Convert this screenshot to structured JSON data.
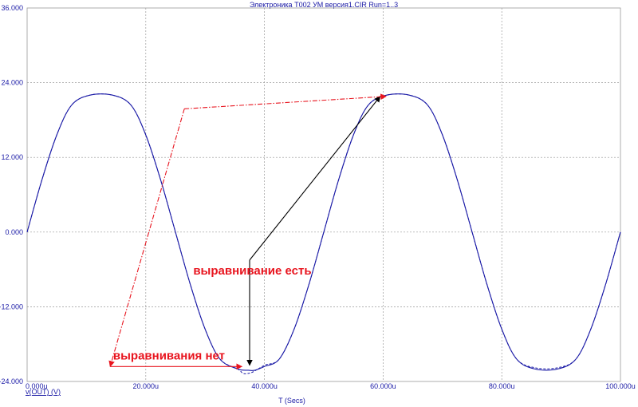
{
  "colors": {
    "axis_text": "#1a1aa6",
    "trace": "#1a1aa6",
    "grid": "#9a9a9a",
    "annotation_red": "#e8141e",
    "annotation_black": "#000000"
  },
  "chart_data": {
    "type": "line",
    "title": "Электроника Т002 УМ версия1.CIR Run=1..3",
    "xlabel": "T (Secs)",
    "ylabel": "",
    "xlim": [
      0,
      100
    ],
    "ylim": [
      -24,
      36
    ],
    "x_unit": "u",
    "grid": true,
    "x_ticks": [
      0,
      20,
      40,
      60,
      80,
      100
    ],
    "x_tick_labels": [
      "0.000u",
      "20.000u",
      "40.000u",
      "60.000u",
      "80.000u",
      "100.000u"
    ],
    "y_ticks": [
      -24,
      -12,
      0,
      12,
      24,
      36
    ],
    "y_tick_labels": [
      "-24.000",
      "-12.000",
      "0.000",
      "12.000",
      "24.000",
      "36.000"
    ],
    "legend": [
      {
        "label": "v(OUT) (V)",
        "position": "bottom-left"
      }
    ],
    "series": [
      {
        "style": "solid",
        "x": [
          0,
          2.5,
          5,
          7.5,
          10.6,
          14.4,
          17.5,
          20,
          22.5,
          25,
          27.5,
          30,
          32.5,
          35.5,
          37.3,
          38.4,
          40,
          42.5,
          45,
          47.5,
          50,
          52.5,
          55,
          57.5,
          60.6,
          64.4,
          67.5,
          70,
          72.5,
          75,
          77.5,
          80,
          82.5,
          85.6,
          89.4,
          92.5,
          95,
          97.5,
          100
        ],
        "y": [
          0,
          8.4,
          15.6,
          20.4,
          22,
          22,
          20.4,
          15.6,
          8.4,
          0,
          -8.4,
          -15.6,
          -20.4,
          -22,
          -22.2,
          -22.2,
          -21.6,
          -20.4,
          -15.6,
          -8.4,
          0,
          8.4,
          15.6,
          20.4,
          22,
          22,
          20.4,
          15.6,
          8.4,
          0,
          -8.4,
          -15.6,
          -20.4,
          -22,
          -22,
          -20.4,
          -15.6,
          -8.4,
          0
        ]
      },
      {
        "style": "dashed",
        "x": [
          0,
          2.5,
          5,
          7.5,
          10.6,
          14.4,
          17.5,
          20,
          22.5,
          25,
          27.5,
          30,
          32.5,
          35.5,
          36.4,
          37.3,
          38.2,
          40,
          42.5,
          45,
          47.5,
          50,
          52.5,
          55,
          57.5,
          60.6,
          64.4,
          67.5,
          70,
          72.5,
          75,
          77.5,
          80,
          82.5,
          85.6,
          89.4,
          92.5,
          95,
          97.5,
          100
        ],
        "y": [
          0,
          8.4,
          15.6,
          20.4,
          22,
          22,
          20.4,
          15.6,
          8.4,
          0,
          -8.4,
          -15.6,
          -20.4,
          -22,
          -22.7,
          -22.7,
          -22.4,
          -21.4,
          -20.4,
          -15.6,
          -8.4,
          0,
          8.4,
          15.6,
          20.4,
          22,
          22,
          20.4,
          15.6,
          8.4,
          0,
          -8.4,
          -15.6,
          -20.4,
          -21.8,
          -21.8,
          -20.4,
          -15.6,
          -8.4,
          0
        ]
      }
    ],
    "annotations": [
      {
        "text": "выравнивание есть",
        "color": "#e8141e",
        "text_at": [
          28,
          -6.8
        ],
        "arrows": [
          {
            "from": [
              37.5,
              -4.5
            ],
            "to": [
              37.5,
              -21.4
            ],
            "color": "#000000",
            "style": "solid"
          },
          {
            "from": [
              37.5,
              -4.5
            ],
            "to": [
              59.5,
              21.8
            ],
            "color": "#000000",
            "style": "solid"
          }
        ]
      },
      {
        "text": "выравнивания нет",
        "color": "#e8141e",
        "text_at": [
          14.5,
          -20.5
        ],
        "arrows": [
          {
            "from": [
              26.5,
              19.8
            ],
            "to": [
              14,
              -21.6
            ],
            "color": "#e8141e",
            "style": "dashdot"
          },
          {
            "from": [
              26.5,
              19.8
            ],
            "to": [
              60.5,
              21.8
            ],
            "color": "#e8141e",
            "style": "dashdot"
          },
          {
            "from": [
              14,
              -21.6
            ],
            "to": [
              36.2,
              -21.6
            ],
            "color": "#e8141e",
            "style": "solid"
          }
        ]
      }
    ]
  }
}
